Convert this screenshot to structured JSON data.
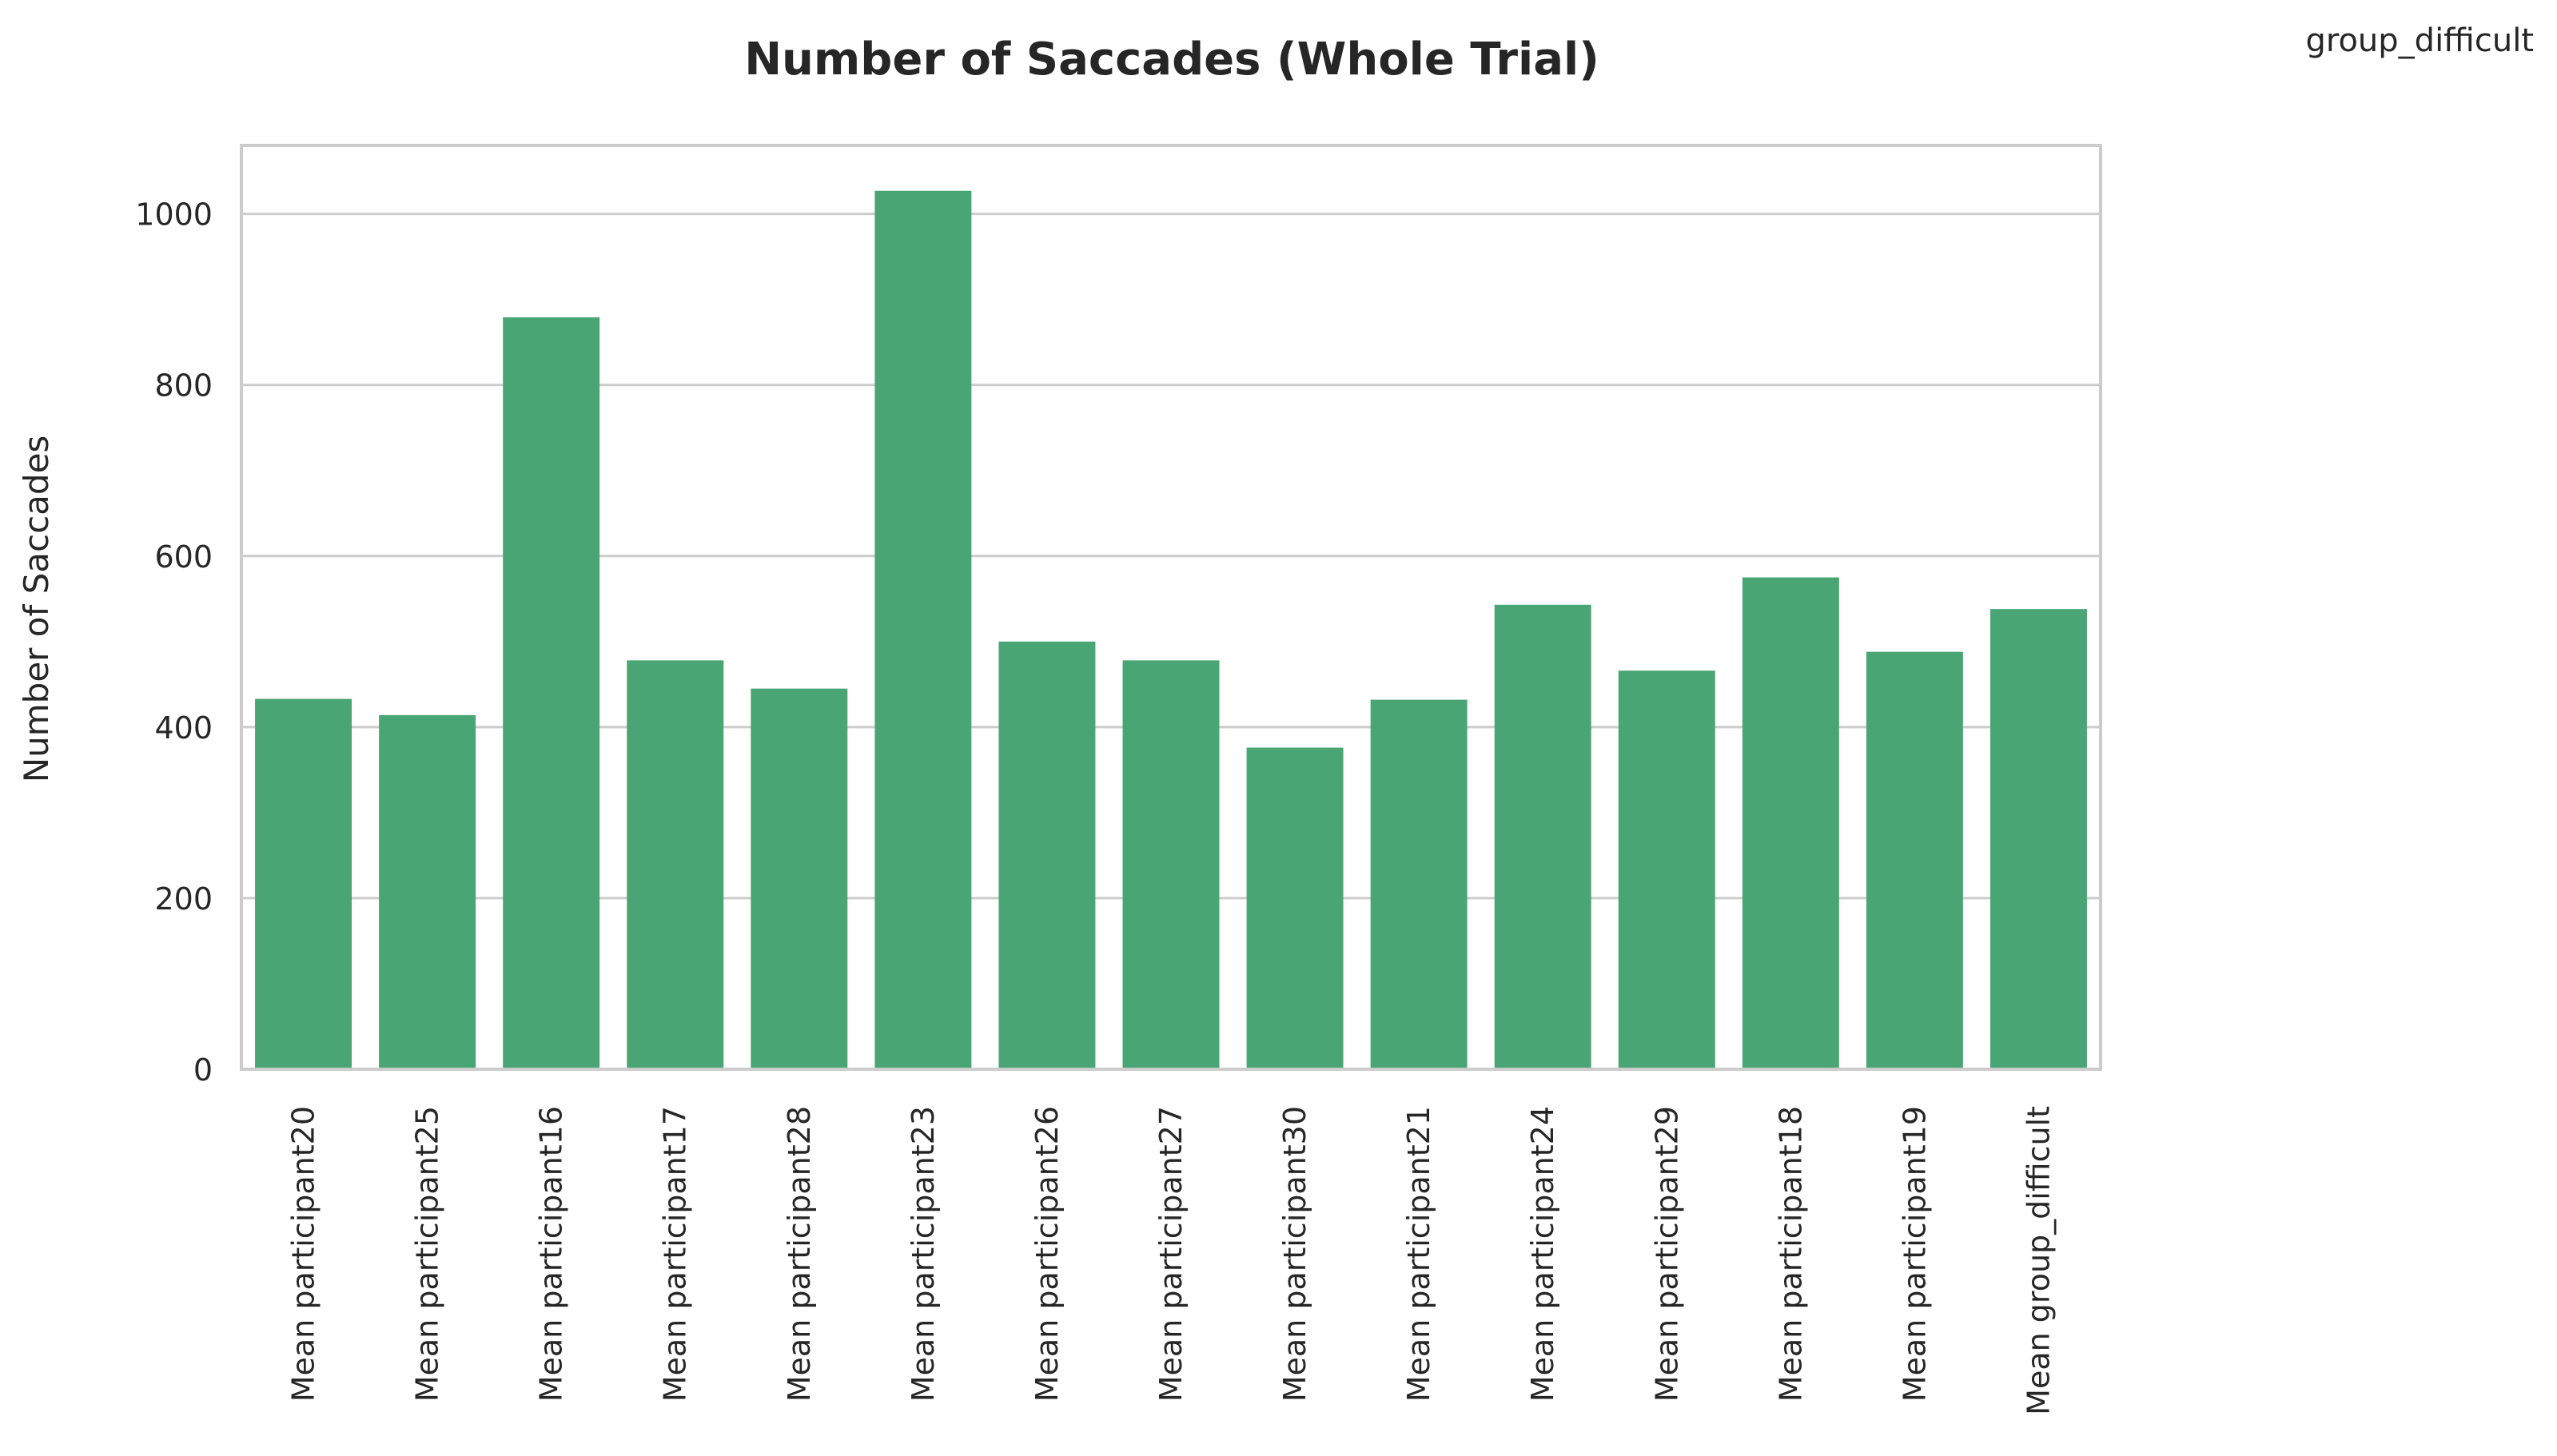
{
  "chart_data": {
    "type": "bar",
    "title": "Number of Saccades (Whole Trial)",
    "corner_label": "group_difficult",
    "xlabel": "",
    "ylabel": "Number of Saccades",
    "ylim": [
      0,
      1080
    ],
    "yticks": [
      0,
      200,
      400,
      600,
      800,
      1000
    ],
    "grid": "horizontal",
    "bar_color": "#4aa574",
    "categories": [
      "Mean participant20",
      "Mean participant25",
      "Mean participant16",
      "Mean participant17",
      "Mean participant28",
      "Mean participant23",
      "Mean participant26",
      "Mean participant27",
      "Mean participant30",
      "Mean participant21",
      "Mean participant24",
      "Mean participant29",
      "Mean participant18",
      "Mean participant19",
      "Mean group_difficult"
    ],
    "values": [
      433,
      414,
      879,
      478,
      445,
      1027,
      500,
      478,
      376,
      432,
      543,
      466,
      575,
      488,
      538
    ]
  }
}
